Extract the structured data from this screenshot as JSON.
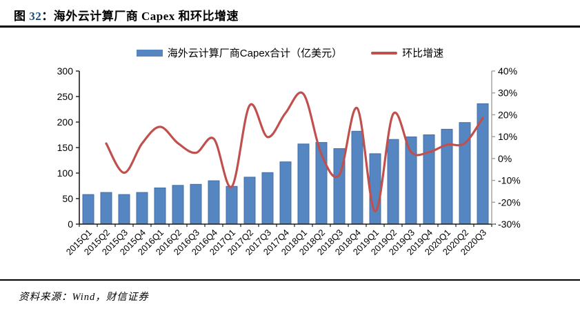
{
  "header": {
    "fig_label": "图 ",
    "fig_number": "32",
    "title_rest": "：海外云计算厂商 Capex 和环比增速"
  },
  "legend": {
    "bar_label": "海外云计算厂商Capex合计（亿美元）",
    "line_label": "环比增速"
  },
  "footer": {
    "source": "资料来源：Wind，财信证券"
  },
  "colors": {
    "bar_fill": "#5586C2",
    "bar_border": "#446FA5",
    "line": "#C0504D",
    "axis": "#1a1a1a",
    "right_axis": "#9e9e9e",
    "text": "#000000"
  },
  "chart_data": {
    "type": "bar",
    "title": "海外云计算厂商 Capex 和环比增速",
    "categories": [
      "2015Q1",
      "2015Q2",
      "2015Q3",
      "2015Q4",
      "2016Q1",
      "2016Q2",
      "2016Q3",
      "2016Q4",
      "2017Q1",
      "2017Q2",
      "2017Q3",
      "2017Q4",
      "2018Q1",
      "2018Q2",
      "2018Q3",
      "2018Q4",
      "2019Q1",
      "2019Q2",
      "2019Q3",
      "2019Q4",
      "2020Q1",
      "2020Q2",
      "2020Q3"
    ],
    "series": [
      {
        "name": "海外云计算厂商Capex合计（亿美元）",
        "type": "bar",
        "axis": "left",
        "values": [
          58,
          62,
          58,
          62,
          71,
          76,
          78,
          85,
          74,
          92,
          101,
          122,
          157,
          160,
          148,
          182,
          138,
          166,
          171,
          175,
          186,
          199,
          236
        ]
      },
      {
        "name": "环比增速",
        "type": "line",
        "axis": "right",
        "values": [
          null,
          6.9,
          -6.5,
          6.9,
          14.5,
          7.0,
          2.6,
          9.0,
          -12.9,
          24.3,
          9.8,
          20.8,
          29.5,
          1.9,
          -7.5,
          23.0,
          -24.2,
          20.3,
          3.0,
          2.9,
          6.3,
          7.0,
          18.6
        ]
      }
    ],
    "left_axis": {
      "min": 0,
      "max": 300,
      "step": 50,
      "tick_labels": [
        "0",
        "50",
        "100",
        "150",
        "200",
        "250",
        "300"
      ]
    },
    "right_axis": {
      "min": -30,
      "max": 40,
      "step": 10,
      "tick_labels": [
        "-30%",
        "-20%",
        "-10%",
        "0%",
        "10%",
        "20%",
        "30%",
        "40%"
      ]
    },
    "grid": false,
    "legend_position": "top",
    "x_tick_rotation": -45
  }
}
